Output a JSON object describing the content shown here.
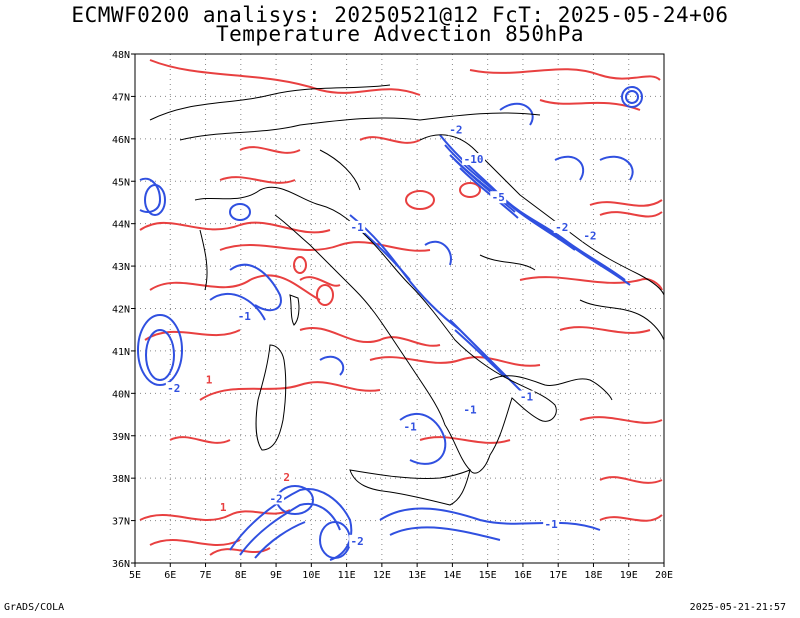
{
  "title_line1": "ECMWF0200 analisys: 20250521@12 FcT: 2025-05-24+06",
  "title_line2": "Temperature Advection 850hPa",
  "footer_left": "GrADS/COLA",
  "footer_right": "2025-05-21-21:57",
  "map": {
    "lon_range": [
      5,
      20
    ],
    "lat_range": [
      36,
      48
    ],
    "lon_ticks": [
      "5E",
      "6E",
      "7E",
      "8E",
      "9E",
      "10E",
      "11E",
      "12E",
      "13E",
      "14E",
      "15E",
      "16E",
      "17E",
      "18E",
      "19E",
      "20E"
    ],
    "lat_ticks": [
      "36N",
      "37N",
      "38N",
      "39N",
      "40N",
      "41N",
      "42N",
      "43N",
      "44N",
      "45N",
      "46N",
      "47N",
      "48N"
    ],
    "grid": "dotted",
    "colors": {
      "warm": "#e84040",
      "cold": "#3050e0",
      "coast": "#000000",
      "grid": "#888888"
    },
    "contour_labels": [
      {
        "text": "-10",
        "lon": 14.6,
        "lat": 45.5
      },
      {
        "text": "-2",
        "lon": 14.1,
        "lat": 46.2
      },
      {
        "text": "-5",
        "lon": 15.3,
        "lat": 44.6
      },
      {
        "text": "-2",
        "lon": 17.1,
        "lat": 43.9
      },
      {
        "text": "-2",
        "lon": 17.9,
        "lat": 43.7
      },
      {
        "text": "-1",
        "lon": 11.3,
        "lat": 43.9
      },
      {
        "text": "-1",
        "lon": 8.1,
        "lat": 41.8
      },
      {
        "text": "-2",
        "lon": 6.1,
        "lat": 40.1
      },
      {
        "text": "-1",
        "lon": 12.8,
        "lat": 39.2
      },
      {
        "text": "-1",
        "lon": 14.5,
        "lat": 39.6
      },
      {
        "text": "-1",
        "lon": 16.1,
        "lat": 39.9
      },
      {
        "text": "-1",
        "lon": 16.8,
        "lat": 36.9
      },
      {
        "text": "-2",
        "lon": 9.0,
        "lat": 37.5
      },
      {
        "text": "-2",
        "lon": 11.3,
        "lat": 36.5
      },
      {
        "text": "1",
        "lon": 7.1,
        "lat": 40.3
      },
      {
        "text": "2",
        "lon": 9.3,
        "lat": 38.0
      },
      {
        "text": "1",
        "lon": 7.5,
        "lat": 37.3
      }
    ]
  }
}
